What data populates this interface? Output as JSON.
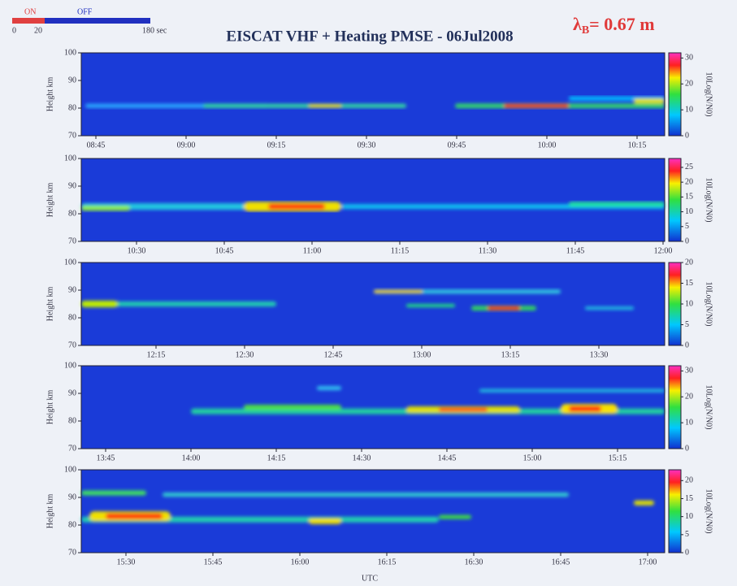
{
  "header": {
    "title": "EISCAT VHF + Heating PMSE - 06Jul2008",
    "lambda": "λ",
    "lambda_sub": "B",
    "lambda_value": "= 0.67 m",
    "on": "ON",
    "off": "OFF",
    "scale_start": "0",
    "scale_mid": "20",
    "scale_end": "180 sec",
    "xlabel": "UTC"
  },
  "chart_data": [
    {
      "type": "heatmap",
      "ylabel": "Height km",
      "ylim": [
        70,
        100
      ],
      "yticks": [
        70,
        80,
        90,
        100
      ],
      "xticklabels": [
        "08:45",
        "09:00",
        "09:15",
        "09:30",
        "09:45",
        "10:00",
        "10:15"
      ],
      "colorbar_label": "10Log(N/N0)",
      "clim": [
        0,
        32
      ],
      "cticks": [
        0,
        10,
        20,
        30
      ]
    },
    {
      "type": "heatmap",
      "ylabel": "Height km",
      "ylim": [
        70,
        100
      ],
      "yticks": [
        70,
        80,
        90,
        100
      ],
      "xticklabels": [
        "10:30",
        "10:45",
        "11:00",
        "11:15",
        "11:30",
        "11:45",
        "12:00"
      ],
      "colorbar_label": "10Log(N/N0)",
      "clim": [
        0,
        28
      ],
      "cticks": [
        0,
        5,
        10,
        15,
        20,
        25
      ]
    },
    {
      "type": "heatmap",
      "ylabel": "Height km",
      "ylim": [
        70,
        100
      ],
      "yticks": [
        70,
        80,
        90,
        100
      ],
      "xticklabels": [
        "12:15",
        "12:30",
        "12:45",
        "13:00",
        "13:15",
        "13:30"
      ],
      "colorbar_label": "10Log(N/N0)",
      "clim": [
        0,
        20
      ],
      "cticks": [
        0,
        5,
        10,
        15,
        20
      ]
    },
    {
      "type": "heatmap",
      "ylabel": "Height km",
      "ylim": [
        70,
        100
      ],
      "yticks": [
        70,
        80,
        90,
        100
      ],
      "xticklabels": [
        "13:45",
        "14:00",
        "14:15",
        "14:30",
        "14:45",
        "15:00",
        "15:15"
      ],
      "colorbar_label": "10Log(N/N0)",
      "clim": [
        0,
        32
      ],
      "cticks": [
        0,
        10,
        20,
        30
      ]
    },
    {
      "type": "heatmap",
      "ylabel": "Height km",
      "ylim": [
        70,
        100
      ],
      "yticks": [
        70,
        80,
        90,
        100
      ],
      "xticklabels": [
        "15:30",
        "15:45",
        "16:00",
        "16:15",
        "16:30",
        "16:45",
        "17:00"
      ],
      "colorbar_label": "10Log(N/N0)",
      "clim": [
        0,
        23
      ],
      "cticks": [
        0,
        5,
        10,
        15,
        20
      ]
    }
  ]
}
